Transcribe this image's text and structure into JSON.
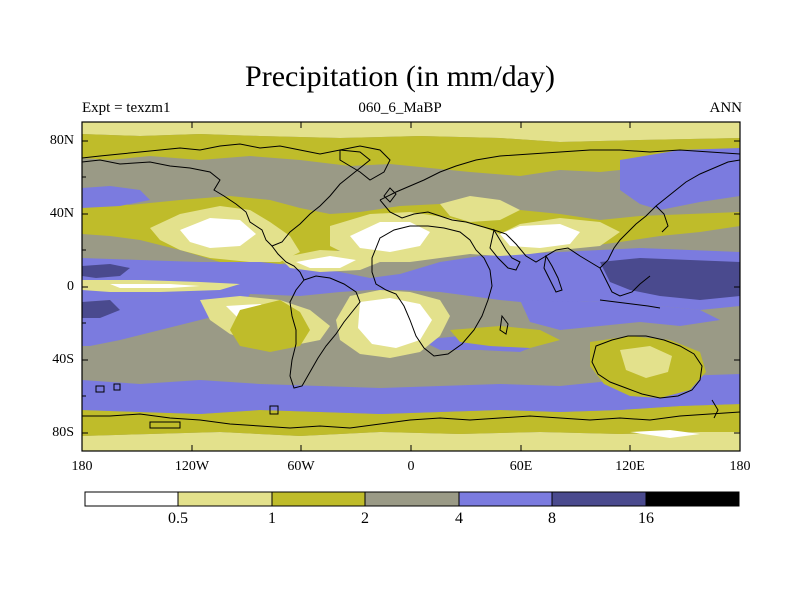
{
  "map": {
    "title": "Precipitation (in mm/day)",
    "subtitle_left": "Expt = texzm1",
    "subtitle_center": "060_6_MaBP",
    "subtitle_right": "ANN",
    "projection": "cylindrical equidistant",
    "lat_labels": [
      "80N",
      "40N",
      "0",
      "40S",
      "80S"
    ],
    "lon_labels": [
      "180",
      "120W",
      "60W",
      "0",
      "60E",
      "120E",
      "180"
    ]
  },
  "colorbar": {
    "levels": [
      "0.5",
      "1",
      "2",
      "4",
      "8",
      "16"
    ],
    "colors": {
      "c0": "#ffffff",
      "c1": "#e3e18c",
      "c2": "#bfbc2a",
      "c3": "#9a9a86",
      "c4": "#7b7bdf",
      "c5": "#4a4a8e",
      "c6": "#000000"
    }
  }
}
